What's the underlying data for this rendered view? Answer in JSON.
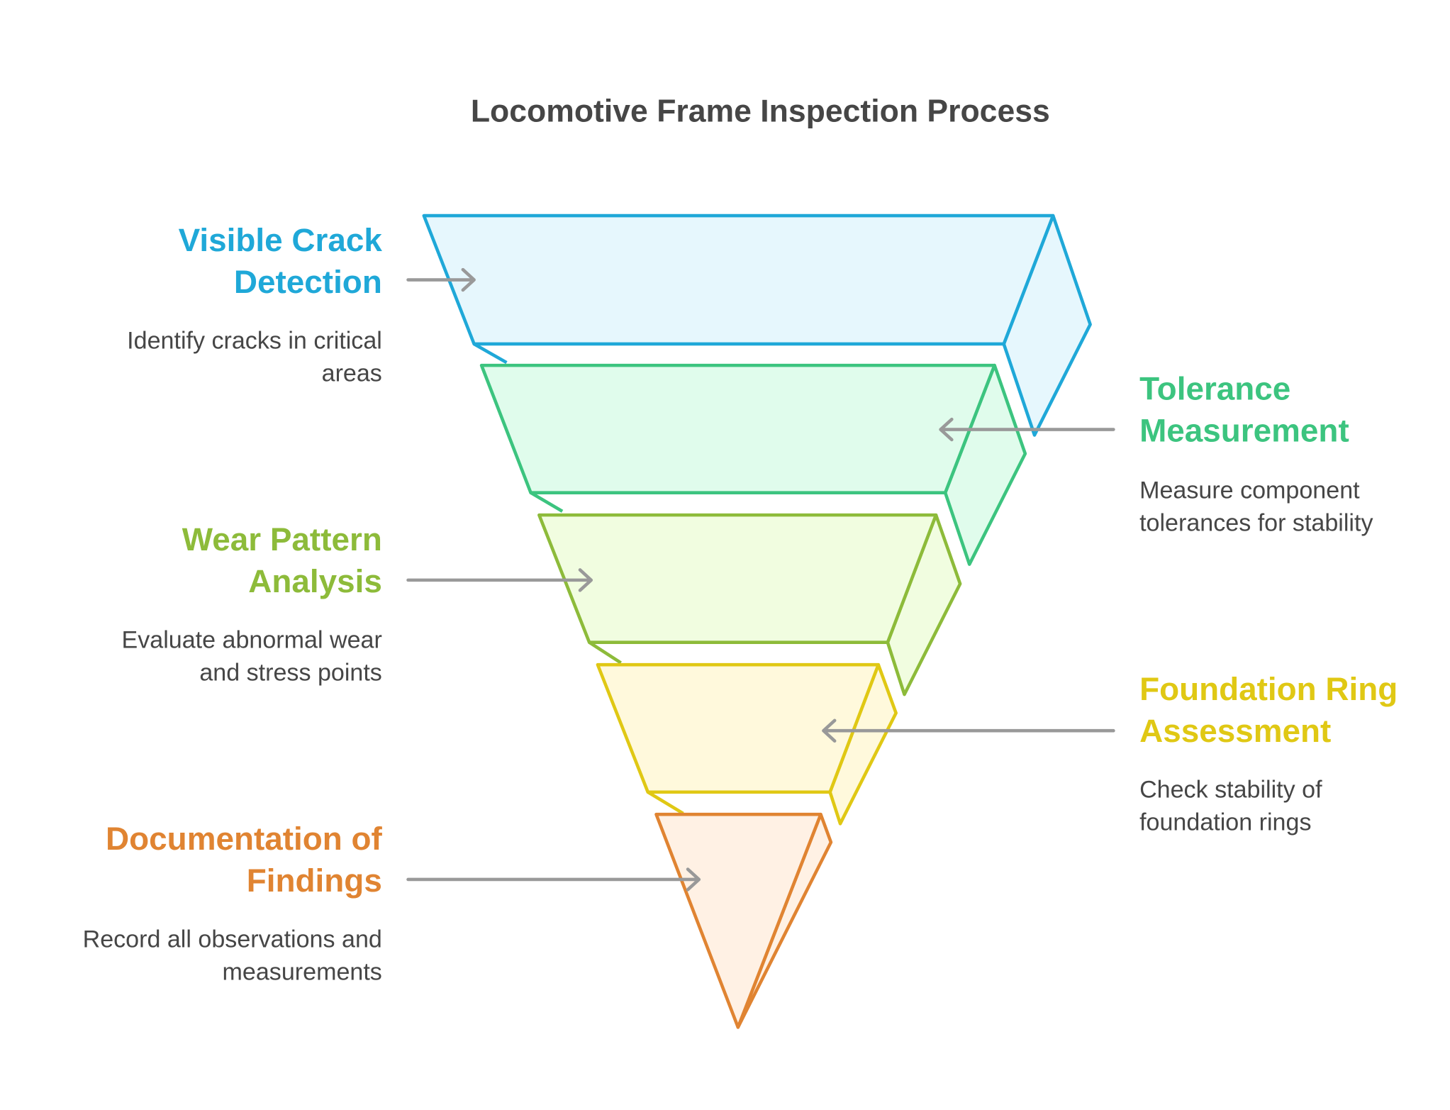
{
  "title": "Locomotive Frame Inspection Process",
  "stages": [
    {
      "title_lines": [
        "Visible Crack",
        "Detection"
      ],
      "desc_lines": [
        "Identify cracks in critical",
        "areas"
      ],
      "stroke": "#1fa8d8",
      "fill": "#e6f7fd",
      "side": "left"
    },
    {
      "title_lines": [
        "Tolerance",
        "Measurement"
      ],
      "desc_lines": [
        "Measure component",
        "tolerances for stability"
      ],
      "stroke": "#3cc47f",
      "fill": "#e0fcec",
      "side": "right"
    },
    {
      "title_lines": [
        "Wear Pattern",
        "Analysis"
      ],
      "desc_lines": [
        "Evaluate abnormal wear",
        "and stress points"
      ],
      "stroke": "#8dbb3a",
      "fill": "#f1fde0",
      "side": "left"
    },
    {
      "title_lines": [
        "Foundation Ring",
        "Assessment"
      ],
      "desc_lines": [
        "Check stability of",
        "foundation rings"
      ],
      "stroke": "#e0c814",
      "fill": "#fff9dc",
      "side": "right"
    },
    {
      "title_lines": [
        "Documentation of",
        "Findings"
      ],
      "desc_lines": [
        "Record all observations and",
        "measurements"
      ],
      "stroke": "#e08432",
      "fill": "#fff1e4",
      "side": "left"
    }
  ]
}
